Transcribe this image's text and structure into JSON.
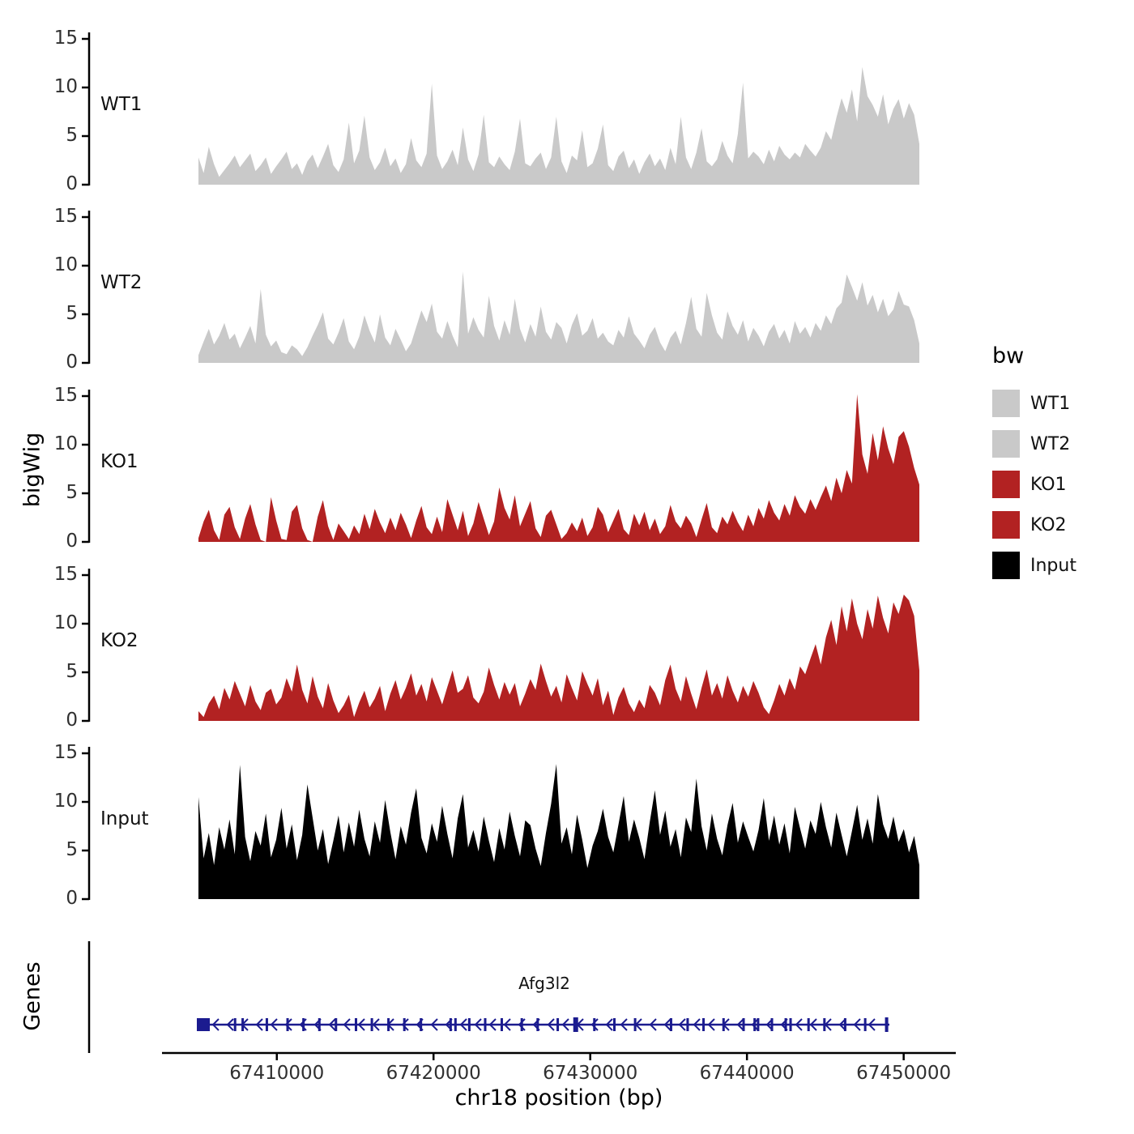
{
  "figure": {
    "y_axis_title": "bigWig",
    "genes_axis_title": "Genes",
    "x_axis": {
      "title": "chr18 position (bp)",
      "domain": [
        67405000,
        67451000
      ],
      "ticks": [
        67410000,
        67420000,
        67430000,
        67440000,
        67450000
      ],
      "tick_labels": [
        "67410000",
        "67420000",
        "67430000",
        "67440000",
        "67450000"
      ]
    },
    "y_ticks": [
      0,
      5,
      10,
      15
    ],
    "y_max": 15.5
  },
  "legend": {
    "title": "bw",
    "entries": [
      {
        "label": "WT1",
        "color": "#c9c9c9"
      },
      {
        "label": "WT2",
        "color": "#c9c9c9"
      },
      {
        "label": "KO1",
        "color": "#b22222"
      },
      {
        "label": "KO2",
        "color": "#b22222"
      },
      {
        "label": "Input",
        "color": "#000000"
      }
    ]
  },
  "gene": {
    "label": "Afg3l2",
    "color": "#1b1b8f",
    "strand": "minus",
    "exons": [
      {
        "f": 0.0,
        "type": "start"
      },
      {
        "f": 0.053,
        "type": "exon"
      },
      {
        "f": 0.064,
        "type": "exon"
      },
      {
        "f": 0.099,
        "type": "exon"
      },
      {
        "f": 0.129,
        "type": "exon"
      },
      {
        "f": 0.152,
        "type": "exon"
      },
      {
        "f": 0.175,
        "type": "exon"
      },
      {
        "f": 0.199,
        "type": "exon"
      },
      {
        "f": 0.228,
        "type": "exon"
      },
      {
        "f": 0.251,
        "type": "exon"
      },
      {
        "f": 0.275,
        "type": "exon"
      },
      {
        "f": 0.298,
        "type": "exon"
      },
      {
        "f": 0.322,
        "type": "exon"
      },
      {
        "f": 0.365,
        "type": "exon"
      },
      {
        "f": 0.372,
        "type": "exon"
      },
      {
        "f": 0.392,
        "type": "exon"
      },
      {
        "f": 0.415,
        "type": "exon"
      },
      {
        "f": 0.439,
        "type": "exon"
      },
      {
        "f": 0.468,
        "type": "exon"
      },
      {
        "f": 0.491,
        "type": "exon"
      },
      {
        "f": 0.52,
        "type": "exon"
      },
      {
        "f": 0.546,
        "type": "tall"
      },
      {
        "f": 0.573,
        "type": "exon"
      },
      {
        "f": 0.602,
        "type": "exon"
      },
      {
        "f": 0.632,
        "type": "exon"
      },
      {
        "f": 0.684,
        "type": "exon"
      },
      {
        "f": 0.708,
        "type": "exon"
      },
      {
        "f": 0.731,
        "type": "exon"
      },
      {
        "f": 0.76,
        "type": "exon"
      },
      {
        "f": 0.789,
        "type": "exon"
      },
      {
        "f": 0.805,
        "type": "exon"
      },
      {
        "f": 0.81,
        "type": "exon"
      },
      {
        "f": 0.83,
        "type": "exon"
      },
      {
        "f": 0.85,
        "type": "exon"
      },
      {
        "f": 0.857,
        "type": "exon"
      },
      {
        "f": 0.883,
        "type": "exon"
      },
      {
        "f": 0.906,
        "type": "exon"
      },
      {
        "f": 0.936,
        "type": "exon"
      },
      {
        "f": 0.965,
        "type": "exon"
      },
      {
        "f": 0.996,
        "type": "end"
      }
    ]
  },
  "chart_data": {
    "type": "area",
    "title": "",
    "xlabel": "chr18 position (bp)",
    "ylabel": "bigWig",
    "x_start": 67405000,
    "x_end": 67451000,
    "x_sampling": "140 evenly spaced points per series between x_start and x_end",
    "ylim": [
      0,
      15.5
    ],
    "legend_position": "right",
    "series": [
      {
        "name": "WT1",
        "color": "#c9c9c9",
        "values": [
          2.8,
          1.2,
          3.9,
          2.1,
          0.8,
          1.5,
          2.2,
          3.0,
          1.8,
          2.5,
          3.2,
          1.4,
          2.0,
          2.8,
          1.1,
          1.9,
          2.6,
          3.4,
          1.6,
          2.2,
          1.0,
          2.4,
          3.1,
          1.7,
          2.9,
          4.2,
          2.0,
          1.3,
          2.6,
          6.4,
          2.2,
          3.5,
          7.1,
          2.8,
          1.5,
          2.3,
          3.8,
          1.9,
          2.7,
          1.2,
          2.1,
          4.8,
          2.5,
          1.8,
          3.2,
          10.4,
          3.0,
          1.6,
          2.4,
          3.6,
          2.0,
          5.9,
          2.6,
          1.4,
          3.1,
          7.2,
          2.3,
          1.8,
          2.9,
          2.1,
          1.5,
          3.4,
          6.8,
          2.2,
          1.9,
          2.7,
          3.3,
          1.6,
          2.8,
          7.0,
          2.4,
          1.2,
          3.0,
          2.5,
          5.6,
          1.8,
          2.2,
          3.7,
          6.2,
          2.0,
          1.4,
          2.9,
          3.5,
          1.7,
          2.6,
          1.1,
          2.3,
          3.2,
          1.9,
          2.7,
          1.5,
          3.8,
          2.1,
          7.0,
          2.8,
          1.6,
          3.3,
          5.8,
          2.4,
          1.9,
          2.6,
          4.5,
          3.0,
          2.2,
          5.2,
          10.5,
          2.7,
          3.4,
          2.9,
          2.1,
          3.6,
          2.4,
          4.0,
          3.1,
          2.6,
          3.3,
          2.8,
          4.2,
          3.5,
          2.9,
          3.8,
          5.5,
          4.6,
          6.9,
          8.9,
          7.4,
          9.8,
          6.5,
          12.1,
          9.1,
          8.2,
          7.0,
          9.3,
          6.2,
          7.8,
          8.8,
          6.8,
          8.4,
          7.2,
          4.2
        ]
      },
      {
        "name": "WT2",
        "color": "#c9c9c9",
        "values": [
          0.8,
          2.2,
          3.5,
          1.9,
          2.8,
          4.1,
          2.4,
          3.0,
          1.5,
          2.6,
          3.8,
          2.0,
          7.6,
          2.9,
          1.7,
          2.3,
          1.1,
          0.9,
          1.8,
          1.4,
          0.7,
          1.6,
          2.8,
          3.9,
          5.2,
          2.5,
          1.9,
          3.1,
          4.6,
          2.2,
          1.4,
          2.7,
          4.9,
          3.3,
          2.1,
          5.0,
          2.6,
          1.8,
          3.5,
          2.4,
          1.2,
          2.0,
          3.7,
          5.4,
          4.2,
          6.1,
          3.2,
          2.5,
          4.3,
          2.8,
          1.6,
          9.4,
          3.0,
          4.7,
          3.4,
          2.6,
          6.9,
          3.8,
          2.3,
          4.4,
          2.9,
          6.6,
          3.5,
          2.1,
          4.0,
          2.7,
          5.8,
          3.2,
          2.4,
          4.2,
          3.6,
          2.0,
          3.9,
          5.1,
          2.8,
          3.3,
          4.6,
          2.5,
          3.1,
          2.2,
          1.8,
          3.4,
          2.6,
          4.8,
          3.0,
          2.3,
          1.5,
          2.9,
          3.7,
          2.1,
          1.2,
          2.6,
          3.3,
          1.9,
          4.1,
          6.8,
          3.5,
          2.7,
          7.2,
          4.9,
          3.1,
          2.4,
          5.3,
          3.8,
          2.9,
          4.4,
          2.2,
          3.6,
          2.8,
          1.7,
          3.2,
          4.0,
          2.5,
          3.4,
          2.0,
          4.3,
          3.0,
          3.7,
          2.6,
          4.1,
          3.3,
          4.9,
          4.0,
          5.6,
          6.2,
          9.1,
          7.8,
          6.4,
          8.3,
          5.9,
          7.0,
          5.2,
          6.6,
          4.8,
          5.5,
          7.4,
          6.0,
          5.8,
          4.4,
          2.0
        ]
      },
      {
        "name": "KO1",
        "color": "#b22222",
        "values": [
          0.4,
          2.1,
          3.3,
          1.2,
          0.2,
          2.8,
          3.6,
          1.5,
          0.3,
          2.4,
          3.9,
          1.8,
          0.2,
          0,
          4.6,
          2.2,
          0.3,
          0.2,
          3.1,
          3.8,
          1.4,
          0.2,
          0,
          2.6,
          4.3,
          1.6,
          0.2,
          1.9,
          1.1,
          0.3,
          1.7,
          0.8,
          2.9,
          1.3,
          3.4,
          2.0,
          0.9,
          2.5,
          1.2,
          3.0,
          1.8,
          0.4,
          2.2,
          3.7,
          1.5,
          0.8,
          2.6,
          1.0,
          4.4,
          2.8,
          1.2,
          3.2,
          0.6,
          1.9,
          4.1,
          2.4,
          0.7,
          2.1,
          5.6,
          3.5,
          2.3,
          4.8,
          1.6,
          2.9,
          4.2,
          1.4,
          0.5,
          2.7,
          3.3,
          1.8,
          0.3,
          0.9,
          2.0,
          1.1,
          2.5,
          0.6,
          1.5,
          3.6,
          2.8,
          1.0,
          2.2,
          3.4,
          1.3,
          0.7,
          2.9,
          1.7,
          3.1,
          1.2,
          2.4,
          0.8,
          1.6,
          3.8,
          2.1,
          1.4,
          2.7,
          1.9,
          0.5,
          2.3,
          4.0,
          1.5,
          0.9,
          2.6,
          1.8,
          3.2,
          2.0,
          1.1,
          2.8,
          1.6,
          3.5,
          2.4,
          4.3,
          3.0,
          2.2,
          3.9,
          2.7,
          4.8,
          3.6,
          2.9,
          4.4,
          3.3,
          4.6,
          5.8,
          4.2,
          6.6,
          5.0,
          7.4,
          6.0,
          15.2,
          9.0,
          7.0,
          11.2,
          8.4,
          11.9,
          9.6,
          8.0,
          10.8,
          11.4,
          9.8,
          7.6,
          5.9
        ]
      },
      {
        "name": "KO2",
        "color": "#b22222",
        "values": [
          1.0,
          0.4,
          1.8,
          2.6,
          1.2,
          3.4,
          2.2,
          4.1,
          2.8,
          1.5,
          3.7,
          2.0,
          1.1,
          2.9,
          3.3,
          1.7,
          2.4,
          4.4,
          3.0,
          5.8,
          3.2,
          1.8,
          4.6,
          2.5,
          1.3,
          3.9,
          2.1,
          0.8,
          1.6,
          2.7,
          0.4,
          1.9,
          3.1,
          1.4,
          2.3,
          3.6,
          1.0,
          2.8,
          4.2,
          2.2,
          3.4,
          4.9,
          2.6,
          3.8,
          2.0,
          4.5,
          3.1,
          1.7,
          3.5,
          5.2,
          2.9,
          3.3,
          4.7,
          2.4,
          1.8,
          3.0,
          5.5,
          3.7,
          2.2,
          4.0,
          2.7,
          3.9,
          1.5,
          2.8,
          4.3,
          3.2,
          5.9,
          4.1,
          2.5,
          3.6,
          1.9,
          4.8,
          3.4,
          2.1,
          5.1,
          3.8,
          2.6,
          4.4,
          1.6,
          3.1,
          0.6,
          2.4,
          3.5,
          1.8,
          0.9,
          2.2,
          1.3,
          3.7,
          2.9,
          1.6,
          4.2,
          5.8,
          3.3,
          2.0,
          4.6,
          2.8,
          1.2,
          3.4,
          5.3,
          2.6,
          3.9,
          2.3,
          4.7,
          3.1,
          1.9,
          3.6,
          2.5,
          4.1,
          2.9,
          1.4,
          0.7,
          2.1,
          3.8,
          2.6,
          4.4,
          3.2,
          5.6,
          4.8,
          6.4,
          7.9,
          5.8,
          8.6,
          10.4,
          7.8,
          11.8,
          9.2,
          12.6,
          10.0,
          8.4,
          11.5,
          9.5,
          12.9,
          10.6,
          9.0,
          12.2,
          11.0,
          13.0,
          12.4,
          10.8,
          5.2
        ]
      },
      {
        "name": "Input",
        "color": "#000000",
        "values": [
          10.5,
          4.2,
          6.8,
          3.5,
          7.4,
          5.1,
          8.2,
          4.6,
          13.8,
          6.4,
          3.9,
          7.0,
          5.5,
          8.8,
          4.3,
          6.1,
          9.4,
          5.2,
          7.7,
          4.0,
          6.6,
          11.8,
          8.4,
          5.0,
          7.2,
          3.6,
          6.0,
          8.6,
          4.8,
          7.9,
          5.4,
          9.2,
          6.2,
          4.4,
          8.0,
          5.8,
          10.2,
          6.9,
          4.1,
          7.5,
          5.6,
          8.9,
          11.4,
          6.3,
          4.7,
          7.8,
          5.9,
          9.6,
          6.7,
          4.2,
          8.3,
          10.8,
          5.3,
          7.1,
          4.9,
          8.5,
          6.0,
          3.8,
          7.3,
          5.1,
          9.0,
          6.5,
          4.4,
          8.1,
          7.6,
          5.2,
          3.4,
          6.8,
          9.8,
          13.9,
          5.7,
          7.4,
          4.6,
          8.7,
          6.1,
          3.2,
          5.5,
          7.0,
          9.3,
          6.4,
          4.8,
          7.7,
          10.6,
          5.9,
          8.2,
          6.3,
          4.1,
          7.9,
          11.2,
          6.6,
          9.1,
          5.4,
          7.2,
          4.3,
          8.4,
          6.9,
          12.4,
          7.5,
          5.0,
          8.8,
          6.2,
          4.5,
          7.6,
          9.9,
          5.8,
          8.0,
          6.4,
          4.9,
          7.1,
          10.4,
          6.0,
          8.6,
          5.6,
          7.8,
          4.7,
          9.5,
          7.3,
          5.2,
          8.1,
          6.7,
          10.0,
          7.4,
          5.3,
          8.9,
          6.6,
          4.4,
          7.0,
          9.7,
          6.1,
          8.3,
          5.7,
          10.8,
          7.7,
          6.2,
          8.5,
          5.9,
          7.2,
          4.8,
          6.5,
          3.5
        ]
      }
    ]
  }
}
